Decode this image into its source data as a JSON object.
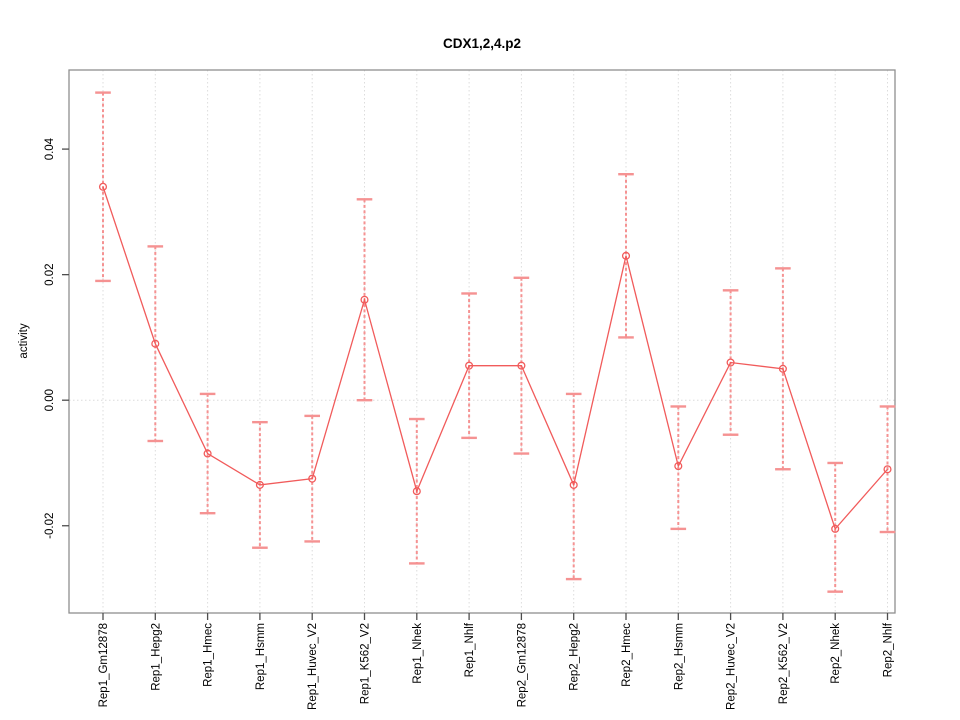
{
  "title": "CDX1,2,4.p2",
  "chart_data": {
    "type": "line",
    "title": "CDX1,2,4.p2",
    "xlabel": "",
    "ylabel": "activity",
    "categories": [
      "Rep1_Gm12878",
      "Rep1_Hepg2",
      "Rep1_Hmec",
      "Rep1_Hsmm",
      "Rep1_Huvec_V2",
      "Rep1_K562_V2",
      "Rep1_Nhek",
      "Rep1_Nhlf",
      "Rep2_Gm12878",
      "Rep2_Hepg2",
      "Rep2_Hmec",
      "Rep2_Hsmm",
      "Rep2_Huvec_V2",
      "Rep2_K562_V2",
      "Rep2_Nhek",
      "Rep2_Nhlf"
    ],
    "series": [
      {
        "name": "activity",
        "values": [
          0.034,
          0.009,
          -0.0085,
          -0.0135,
          -0.0125,
          0.016,
          -0.0145,
          0.0055,
          0.0055,
          -0.0135,
          0.023,
          -0.0105,
          0.006,
          0.005,
          -0.0205,
          -0.011
        ]
      }
    ],
    "error_bars": {
      "upper": [
        0.049,
        0.0245,
        0.001,
        -0.0035,
        -0.0025,
        0.032,
        -0.003,
        0.017,
        0.0195,
        0.001,
        0.036,
        -0.001,
        0.0175,
        0.021,
        -0.01,
        -0.001
      ],
      "lower": [
        0.019,
        -0.0065,
        -0.018,
        -0.0235,
        -0.0225,
        0.0,
        -0.026,
        -0.006,
        -0.0085,
        -0.0285,
        0.01,
        -0.0205,
        -0.0055,
        -0.011,
        -0.0305,
        -0.021
      ]
    },
    "yticks": {
      "values": [
        0.04,
        0.02,
        0.0,
        -0.02
      ],
      "labels": [
        "0.04",
        "0.02",
        "0.00",
        "-0.02"
      ]
    },
    "ylim": [
      -0.0339,
      0.0526
    ],
    "grid": {
      "vertical": "dotted line at every category",
      "horizontal": "dotted line at y = 0 only"
    },
    "legend": "none",
    "marker": "open-circle",
    "colors": {
      "series": "#f15b5b",
      "error_bar": "#f59292",
      "grid": "#dcdcdc",
      "box": "#8f8f8f",
      "tick": "#4d4d4d",
      "text": "#000000"
    }
  }
}
